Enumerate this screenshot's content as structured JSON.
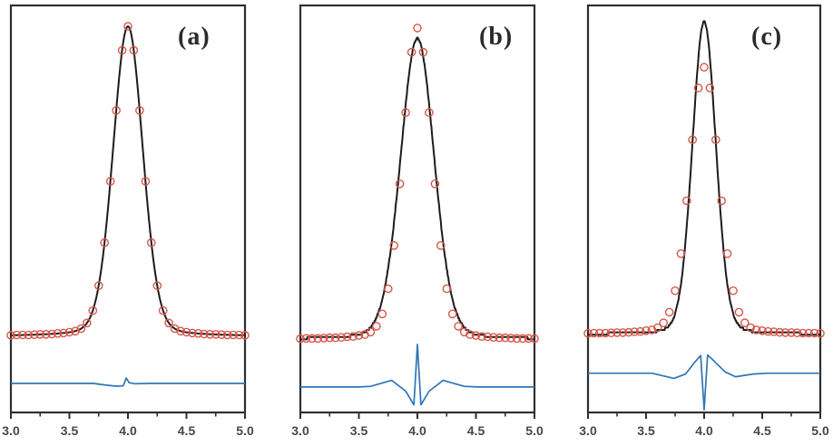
{
  "figure": {
    "kind": "three-panel peak-fit comparison figure",
    "background": "#ffffff"
  },
  "colors": {
    "frame": "#2f2f2f",
    "observed": "#d9564a",
    "calculated": "#1c1c1c",
    "difference": "#2e75b6",
    "tick_label": "#474747",
    "panel_label": "#2b2b2b"
  },
  "chart_data": {
    "type": "line",
    "layout": "three side-by-side panels (a)(b)(c), each with observed points (red open circles), calculated profile (black line) and difference curve (blue line, offset below); only x-axis is labeled",
    "xlim": [
      3.0,
      5.0
    ],
    "x_major_ticks": [
      3.0,
      3.5,
      4.0,
      4.5,
      5.0
    ],
    "x_tick_labels": [
      "3.0",
      "3.5",
      "4.0",
      "4.5",
      "5.0"
    ],
    "x_minor_ticks": [
      3.25,
      3.75,
      4.25,
      4.75
    ],
    "grid": "off",
    "legend": "none",
    "series_roles": {
      "observed": "red open circles: measured data points, peak centered at x=4.0, normalized height 1.0",
      "calculated": "black solid line: fitted peak profile",
      "difference": "blue solid line: observed minus calculated, plotted offset below the peak"
    },
    "observed": {
      "x": [
        3.0,
        3.05,
        3.1,
        3.15,
        3.2,
        3.25,
        3.3,
        3.35,
        3.4,
        3.45,
        3.5,
        3.55,
        3.6,
        3.65,
        3.7,
        3.75,
        3.8,
        3.85,
        3.9,
        3.95,
        4.0,
        4.05,
        4.1,
        4.15,
        4.2,
        4.25,
        4.3,
        4.35,
        4.4,
        4.45,
        4.5,
        4.55,
        4.6,
        4.65,
        4.7,
        4.75,
        4.8,
        4.85,
        4.9,
        4.95,
        5.0
      ],
      "y": [
        0.023,
        0.024,
        0.024,
        0.024,
        0.025,
        0.026,
        0.026,
        0.027,
        0.029,
        0.03,
        0.033,
        0.036,
        0.044,
        0.062,
        0.101,
        0.18,
        0.316,
        0.51,
        0.734,
        0.924,
        1.0,
        0.924,
        0.734,
        0.51,
        0.316,
        0.18,
        0.101,
        0.062,
        0.044,
        0.036,
        0.033,
        0.03,
        0.029,
        0.027,
        0.026,
        0.026,
        0.025,
        0.024,
        0.024,
        0.024,
        0.023
      ]
    },
    "panels": [
      {
        "label": "(a)",
        "fit_quality": "good fit: calculated line passes through the data, difference curve nearly flat with a tiny kink at x=4.0",
        "ylim": [
          -0.221,
          1.066
        ],
        "calculated_profile": {
          "shape": "pseudo-Voigt",
          "center": 4.0,
          "fwhm": 0.3,
          "height": 0.98,
          "baseline": 0.02,
          "lorentz_fraction": 0.15,
          "step_artifact": false
        },
        "difference_curve": [
          [
            3.0,
            -0.129
          ],
          [
            3.7,
            -0.129
          ],
          [
            3.8,
            -0.134
          ],
          [
            3.9,
            -0.138
          ],
          [
            3.96,
            -0.137
          ],
          [
            3.985,
            -0.112
          ],
          [
            4.01,
            -0.127
          ],
          [
            4.06,
            -0.13
          ],
          [
            4.2,
            -0.129
          ],
          [
            5.0,
            -0.129
          ]
        ]
      },
      {
        "label": "(b)",
        "fit_quality": "fit too broad and too low at apex: top data point lies above the curve; difference shows sharp positive spike at x=4.0 flanked by negative dips and small positive shoulders near x=3.78 and 4.22",
        "ylim": [
          -0.209,
          1.071
        ],
        "calculated_profile": {
          "shape": "pseudo-Voigt",
          "center": 4.0,
          "fwhm": 0.34,
          "height": 0.948,
          "baseline": 0.02,
          "lorentz_fraction": 0.15,
          "step_artifact": true
        },
        "difference_curve": [
          [
            3.0,
            -0.129
          ],
          [
            3.5,
            -0.129
          ],
          [
            3.6,
            -0.127
          ],
          [
            3.78,
            -0.108
          ],
          [
            3.9,
            -0.142
          ],
          [
            3.97,
            -0.185
          ],
          [
            4.0,
            0.005
          ],
          [
            4.03,
            -0.185
          ],
          [
            4.1,
            -0.142
          ],
          [
            4.22,
            -0.108
          ],
          [
            4.4,
            -0.127
          ],
          [
            4.52,
            -0.129
          ],
          [
            5.0,
            -0.129
          ]
        ]
      },
      {
        "label": "(c)",
        "fit_quality": "fit too narrow and too tall: curve apex overshoots the top data point; difference shows deep negative spike at x=4.0 between two positive shoulders near x=3.96 and 4.04",
        "ylim": [
          -0.267,
          1.227
        ],
        "calculated_profile": {
          "shape": "pseudo-Voigt",
          "center": 4.0,
          "fwhm": 0.24,
          "height": 1.147,
          "baseline": 0.02,
          "lorentz_fraction": 0.12,
          "step_artifact": true
        },
        "difference_curve": [
          [
            3.0,
            -0.123
          ],
          [
            3.55,
            -0.123
          ],
          [
            3.65,
            -0.133
          ],
          [
            3.74,
            -0.142
          ],
          [
            3.84,
            -0.126
          ],
          [
            3.92,
            -0.082
          ],
          [
            3.97,
            -0.058
          ],
          [
            4.0,
            -0.257
          ],
          [
            4.03,
            -0.056
          ],
          [
            4.09,
            -0.08
          ],
          [
            4.18,
            -0.118
          ],
          [
            4.27,
            -0.136
          ],
          [
            4.42,
            -0.126
          ],
          [
            4.55,
            -0.123
          ],
          [
            5.0,
            -0.123
          ]
        ]
      }
    ]
  }
}
